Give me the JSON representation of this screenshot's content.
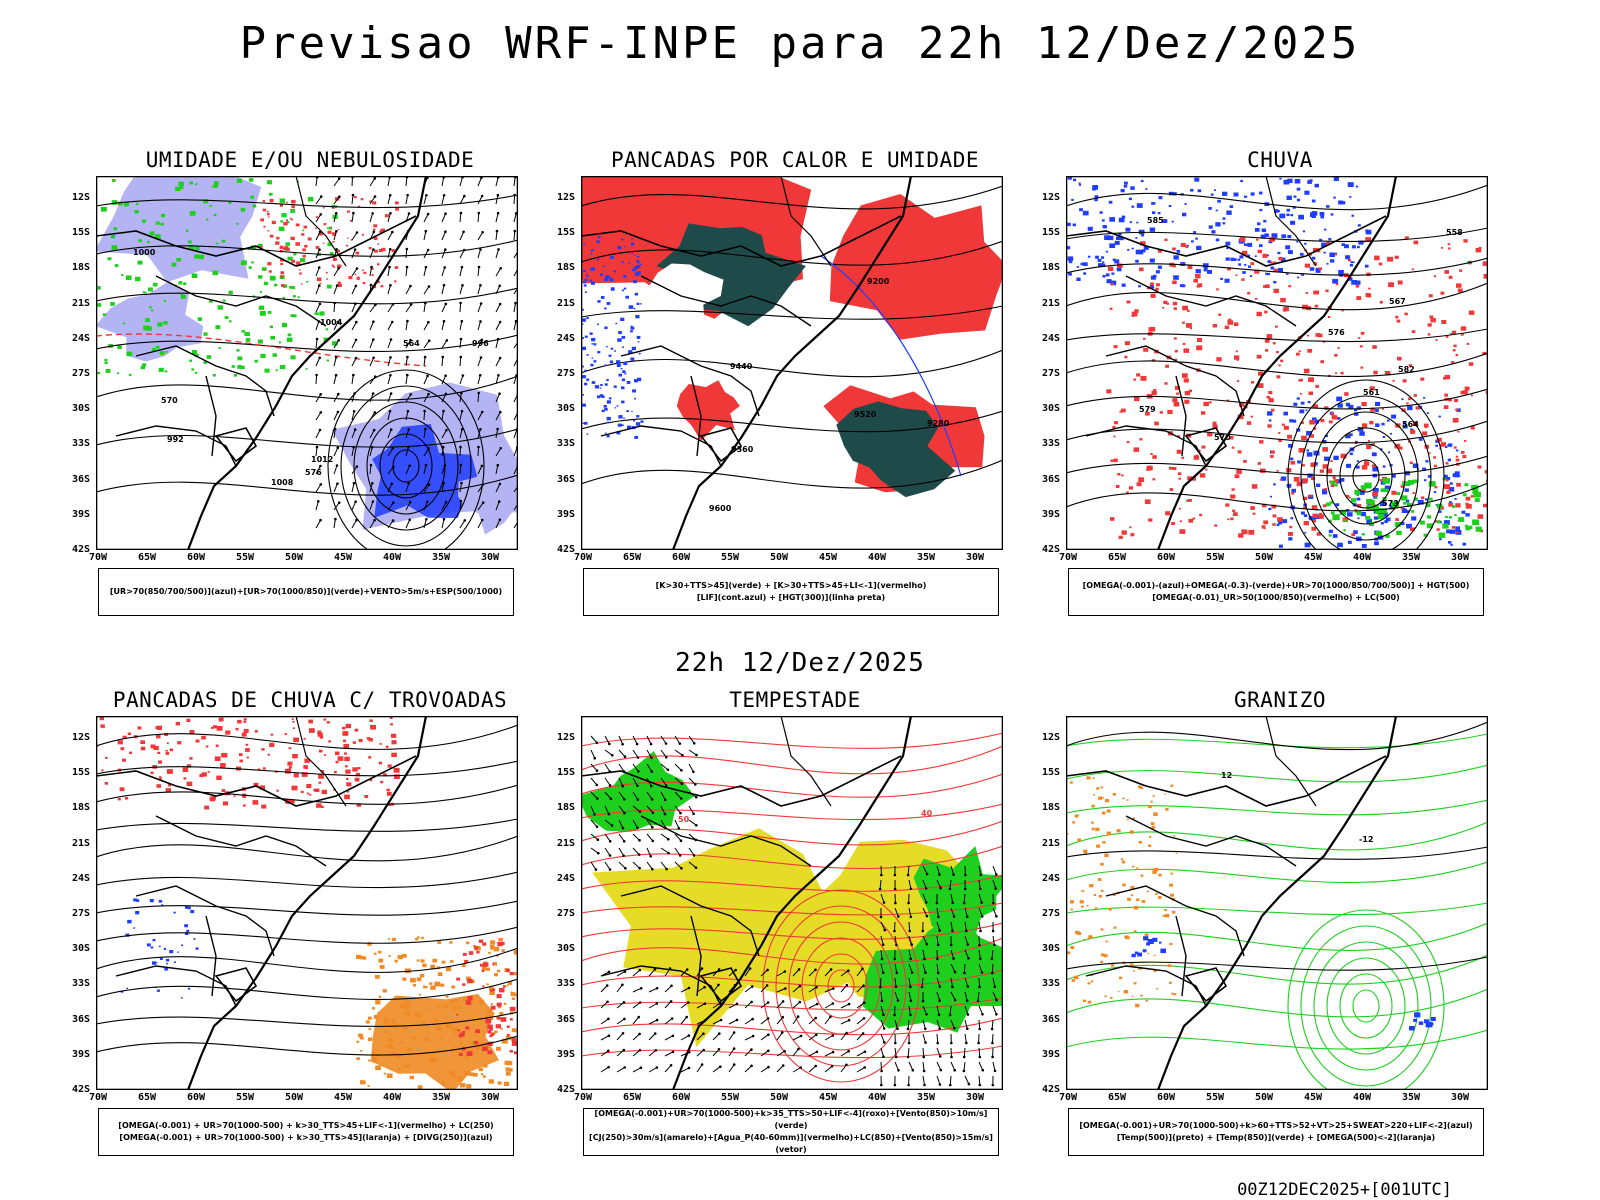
{
  "header": {
    "title": "Previsao WRF-INPE  para 22h 12/Dez/2025",
    "mid_title": "22h 12/Dez/2025",
    "footer": "00Z12DEC2025+[001UTC]"
  },
  "axes": {
    "lat_labels": [
      "12S",
      "15S",
      "18S",
      "21S",
      "24S",
      "27S",
      "30S",
      "33S",
      "36S",
      "39S",
      "42S"
    ],
    "lon_labels": [
      "70W",
      "65W",
      "60W",
      "55W",
      "50W",
      "45W",
      "40W",
      "35W",
      "30W"
    ]
  },
  "colors": {
    "blue": "#1f3dff",
    "lavender": "#b4b4f5",
    "green": "#1ecf1e",
    "red": "#f03838",
    "darkteal": "#1f4a4a",
    "orange": "#f08a24",
    "yellow": "#e6dc28",
    "contour_black": "#000000"
  },
  "panels": [
    {
      "id": "umidade",
      "title": "UMIDADE E/OU NEBULOSIDADE",
      "legend": [
        "[UR>70(850/700/500)](azul)+[UR>70(1000/850)](verde)+VENTO>5m/s+ESP(500/1000)"
      ],
      "contour_labels": [
        "1008",
        "1012",
        "1004",
        "1000",
        "996",
        "992",
        "576",
        "570",
        "564"
      ]
    },
    {
      "id": "pancadas-calor",
      "title": "PANCADAS POR CALOR E UMIDADE",
      "legend": [
        "[K>30+TTS>45](verde) + [K>30+TTS>45+LI<-1](vermelho)",
        "[LIF](cont.azul) + [HGT(300)](linha preta)"
      ],
      "contour_labels": [
        "9600",
        "9520",
        "9440",
        "9360",
        "9280",
        "9200"
      ]
    },
    {
      "id": "chuva",
      "title": "CHUVA",
      "legend": [
        "[OMEGA(-0.001)-(azul)+OMEGA(-0.3)-(verde)+UR>70(1000/850/700/500)] + HGT(500)",
        "[OMEGA(-0.01)_UR>50(1000/850)(vermelho) + LC(500)"
      ],
      "contour_labels": [
        "585",
        "582",
        "579",
        "576",
        "573",
        "570",
        "567",
        "564",
        "561",
        "558"
      ]
    },
    {
      "id": "pancadas-trovoadas",
      "title": "PANCADAS DE CHUVA C/ TROVOADAS",
      "legend": [
        "[OMEGA(-0.001) + UR>70(1000-500) + k>30_TTS>45+LIF<-1](vermelho) + LC(250)",
        "[OMEGA(-0.001) + UR>70(1000-500) + k>30_TTS>45](laranja) + [DIVG(250)](azul)"
      ],
      "contour_labels": []
    },
    {
      "id": "tempestade",
      "title": "TEMPESTADE",
      "legend": [
        "[OMEGA(-0.001)+UR>70(1000-500)+k>35_TTS>50+LIF<-4](roxo)+[Vento(850)>10m/s](verde)",
        "[CJ(250)>30m/s](amarelo)+[Agua_P(40-60mm)](vermelho)+LC(850)+[Vento(850)>15m/s](vetor)"
      ],
      "contour_labels": [
        "40",
        "50"
      ]
    },
    {
      "id": "granizo",
      "title": "GRANIZO",
      "legend": [
        "[OMEGA(-0.001)+UR>70(1000-500)+k>60+TTS>52+VT>25+SWEAT>220+LIF<-2](azul)",
        "[Temp(500)](preto) + [Temp(850)](verde) + [OMEGA(500)<-2](laranja)"
      ],
      "contour_labels": [
        "-12",
        "12"
      ]
    }
  ]
}
